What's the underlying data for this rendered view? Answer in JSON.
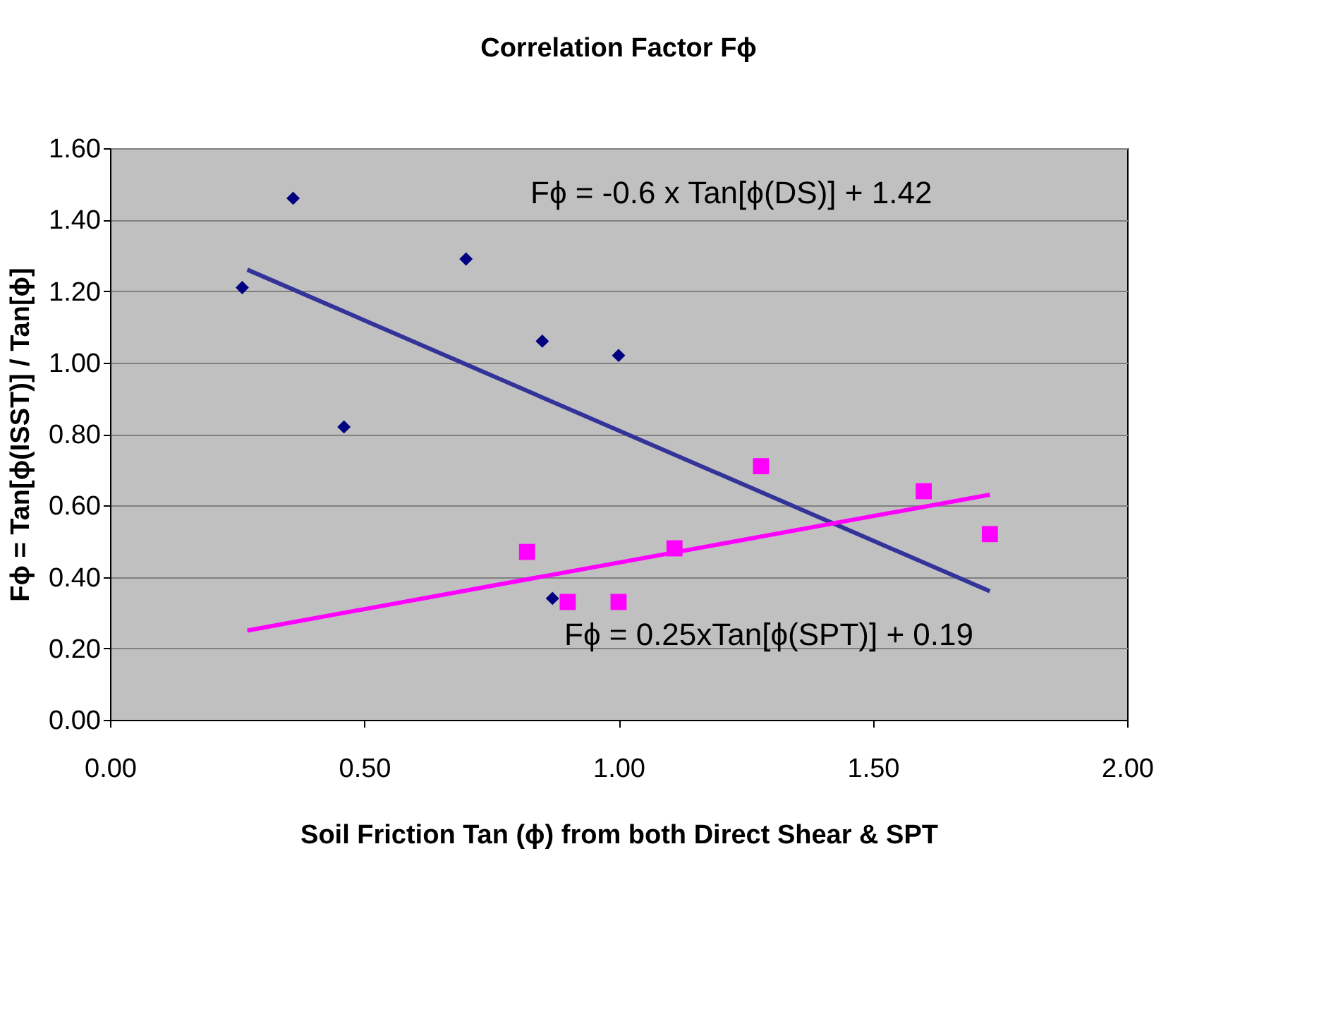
{
  "chart_data": {
    "type": "scatter",
    "title": "Correlation Factor  Fϕ",
    "xlabel": "Soil Friction Tan (ϕ) from both Direct Shear & SPT",
    "ylabel": "Fϕ = Tan[ϕ(ISST)] / Tan[ϕ]",
    "xlim": [
      0,
      2
    ],
    "xticks": [
      {
        "value": 0,
        "label": "0.00"
      },
      {
        "value": 0.5,
        "label": "0.50"
      },
      {
        "value": 1,
        "label": "1.00"
      },
      {
        "value": 1.5,
        "label": "1.50"
      },
      {
        "value": 2,
        "label": "2.00"
      }
    ],
    "ylim": [
      0,
      1.6
    ],
    "yticks": [
      {
        "value": 0,
        "label": "0.00"
      },
      {
        "value": 0.2,
        "label": "0.20"
      },
      {
        "value": 0.4,
        "label": "0.40"
      },
      {
        "value": 0.6,
        "label": "0.60"
      },
      {
        "value": 0.8,
        "label": "0.80"
      },
      {
        "value": 1,
        "label": "1.00"
      },
      {
        "value": 1.2,
        "label": "1.20"
      },
      {
        "value": 1.4,
        "label": "1.40"
      },
      {
        "value": 1.6,
        "label": "1.60"
      }
    ],
    "grid": "y",
    "series": [
      {
        "type": "scatter",
        "marker": "diamond",
        "color": "#000080",
        "x": [
          0.26,
          0.36,
          0.46,
          0.7,
          0.85,
          1.0,
          0.87
        ],
        "values": [
          1.21,
          1.46,
          0.82,
          1.29,
          1.06,
          1.02,
          0.34
        ]
      },
      {
        "type": "scatter",
        "marker": "square",
        "color": "#ff00ff",
        "x": [
          0.82,
          0.9,
          1.0,
          1.11,
          1.28,
          1.6,
          1.73
        ],
        "values": [
          0.47,
          0.33,
          0.33,
          0.48,
          0.71,
          0.64,
          0.52
        ]
      },
      {
        "type": "line",
        "marker": "none",
        "color": "#333399",
        "x": [
          0.27,
          1.73
        ],
        "values": [
          1.26,
          0.36
        ]
      },
      {
        "type": "line",
        "marker": "none",
        "color": "#ff00ff",
        "x": [
          0.27,
          1.73
        ],
        "values": [
          0.25,
          0.63
        ]
      }
    ],
    "annotations": [
      "Fϕ = -0.6 x Tan[ϕ(DS)] + 1.42",
      "Fϕ = 0.25xTan[ϕ(SPT)] + 0.19"
    ]
  }
}
